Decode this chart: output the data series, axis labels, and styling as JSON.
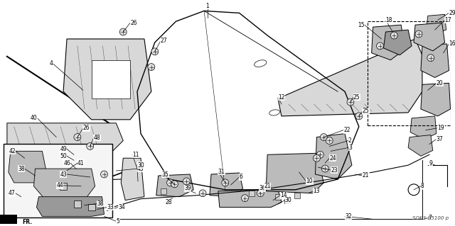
{
  "bg_color": "#ffffff",
  "diagram_code": "SOK3-B5100 p",
  "fig_w": 6.4,
  "fig_h": 3.19,
  "dpi": 100,
  "lw_main": 0.8,
  "lw_thick": 1.2,
  "lw_thin": 0.5,
  "gray_light": "#d8d8d8",
  "gray_mid": "#bbbbbb",
  "gray_dark": "#999999",
  "label_fontsize": 5.5
}
